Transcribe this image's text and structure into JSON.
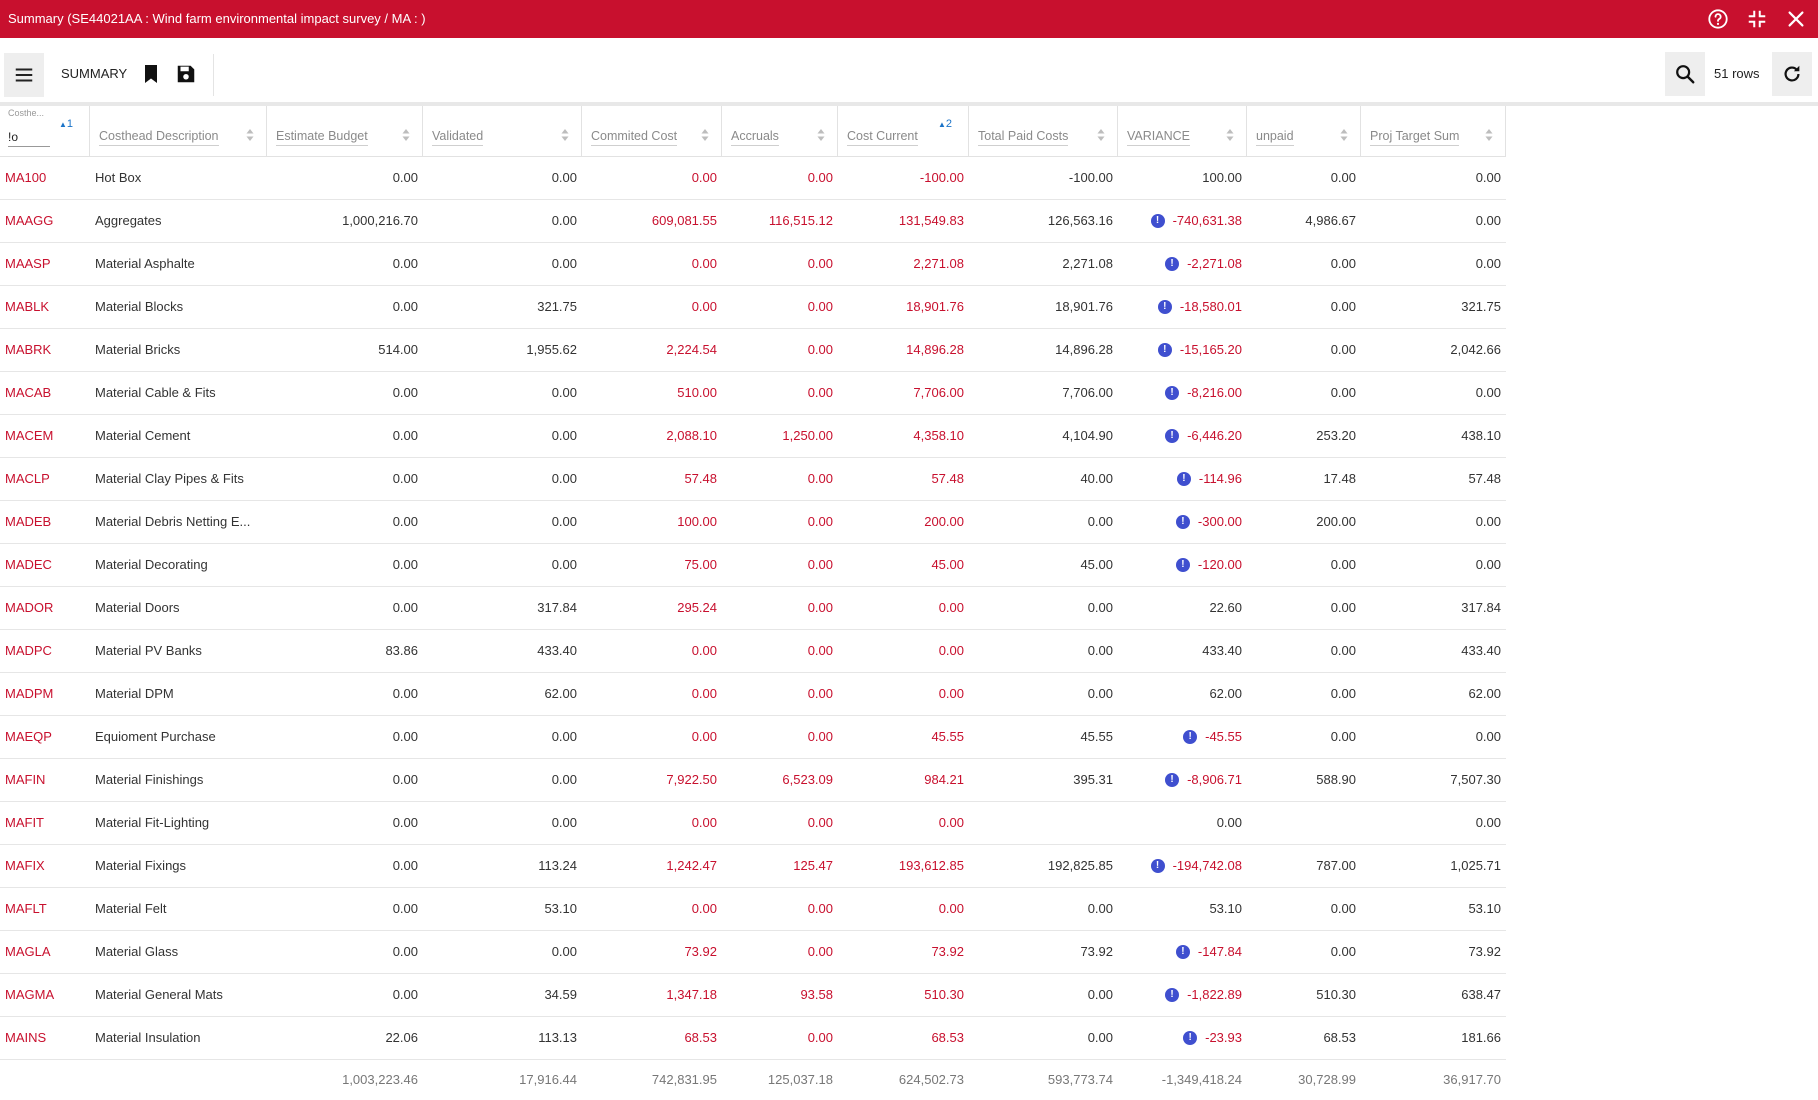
{
  "window": {
    "title": "Summary (SE44021AA : Wind farm environmental impact survey / MA : )",
    "icons": [
      "help-icon",
      "collapse-icon",
      "close-icon"
    ]
  },
  "toolbar": {
    "summary_label": "SUMMARY",
    "rows_label": "51 rows"
  },
  "grid": {
    "filter": {
      "caption": "Costhe...",
      "value": "!o"
    },
    "columns": [
      {
        "key": "code",
        "label": "",
        "sort_order": "1"
      },
      {
        "key": "desc",
        "label": "Costhead Description",
        "sort_order": ""
      },
      {
        "key": "estimate",
        "label": "Estimate Budget",
        "sort_order": ""
      },
      {
        "key": "validated",
        "label": "Validated",
        "sort_order": ""
      },
      {
        "key": "committed",
        "label": "Commited Cost",
        "sort_order": ""
      },
      {
        "key": "accruals",
        "label": "Accruals",
        "sort_order": ""
      },
      {
        "key": "cost_current",
        "label": "Cost Current",
        "sort_order": "2"
      },
      {
        "key": "total_paid",
        "label": "Total Paid Costs",
        "sort_order": ""
      },
      {
        "key": "variance",
        "label": "VARIANCE",
        "sort_order": ""
      },
      {
        "key": "unpaid",
        "label": "unpaid",
        "sort_order": ""
      },
      {
        "key": "proj_target",
        "label": "Proj Target Sum",
        "sort_order": ""
      }
    ],
    "rows": [
      {
        "code": "MA100",
        "desc": "Hot Box",
        "estimate": "0.00",
        "validated": "0.00",
        "committed": "0.00",
        "accruals": "0.00",
        "cost_current": "-100.00",
        "total_paid": "-100.00",
        "variance": "100.00",
        "warn": false,
        "unpaid": "0.00",
        "proj_target": "0.00"
      },
      {
        "code": "MAAGG",
        "desc": "Aggregates",
        "estimate": "1,000,216.70",
        "validated": "0.00",
        "committed": "609,081.55",
        "accruals": "116,515.12",
        "cost_current": "131,549.83",
        "total_paid": "126,563.16",
        "variance": "-740,631.38",
        "warn": true,
        "unpaid": "4,986.67",
        "proj_target": "0.00"
      },
      {
        "code": "MAASP",
        "desc": "Material Asphalte",
        "estimate": "0.00",
        "validated": "0.00",
        "committed": "0.00",
        "accruals": "0.00",
        "cost_current": "2,271.08",
        "total_paid": "2,271.08",
        "variance": "-2,271.08",
        "warn": true,
        "unpaid": "0.00",
        "proj_target": "0.00"
      },
      {
        "code": "MABLK",
        "desc": "Material Blocks",
        "estimate": "0.00",
        "validated": "321.75",
        "committed": "0.00",
        "accruals": "0.00",
        "cost_current": "18,901.76",
        "total_paid": "18,901.76",
        "variance": "-18,580.01",
        "warn": true,
        "unpaid": "0.00",
        "proj_target": "321.75"
      },
      {
        "code": "MABRK",
        "desc": "Material Bricks",
        "estimate": "514.00",
        "validated": "1,955.62",
        "committed": "2,224.54",
        "accruals": "0.00",
        "cost_current": "14,896.28",
        "total_paid": "14,896.28",
        "variance": "-15,165.20",
        "warn": true,
        "unpaid": "0.00",
        "proj_target": "2,042.66"
      },
      {
        "code": "MACAB",
        "desc": "Material Cable & Fits",
        "estimate": "0.00",
        "validated": "0.00",
        "committed": "510.00",
        "accruals": "0.00",
        "cost_current": "7,706.00",
        "total_paid": "7,706.00",
        "variance": "-8,216.00",
        "warn": true,
        "unpaid": "0.00",
        "proj_target": "0.00"
      },
      {
        "code": "MACEM",
        "desc": "Material Cement",
        "estimate": "0.00",
        "validated": "0.00",
        "committed": "2,088.10",
        "accruals": "1,250.00",
        "cost_current": "4,358.10",
        "total_paid": "4,104.90",
        "variance": "-6,446.20",
        "warn": true,
        "unpaid": "253.20",
        "proj_target": "438.10"
      },
      {
        "code": "MACLP",
        "desc": "Material Clay Pipes & Fits",
        "estimate": "0.00",
        "validated": "0.00",
        "committed": "57.48",
        "accruals": "0.00",
        "cost_current": "57.48",
        "total_paid": "40.00",
        "variance": "-114.96",
        "warn": true,
        "unpaid": "17.48",
        "proj_target": "57.48"
      },
      {
        "code": "MADEB",
        "desc": "Material Debris Netting E...",
        "estimate": "0.00",
        "validated": "0.00",
        "committed": "100.00",
        "accruals": "0.00",
        "cost_current": "200.00",
        "total_paid": "0.00",
        "variance": "-300.00",
        "warn": true,
        "unpaid": "200.00",
        "proj_target": "0.00"
      },
      {
        "code": "MADEC",
        "desc": "Material Decorating",
        "estimate": "0.00",
        "validated": "0.00",
        "committed": "75.00",
        "accruals": "0.00",
        "cost_current": "45.00",
        "total_paid": "45.00",
        "variance": "-120.00",
        "warn": true,
        "unpaid": "0.00",
        "proj_target": "0.00"
      },
      {
        "code": "MADOR",
        "desc": "Material Doors",
        "estimate": "0.00",
        "validated": "317.84",
        "committed": "295.24",
        "accruals": "0.00",
        "cost_current": "0.00",
        "total_paid": "0.00",
        "variance": "22.60",
        "warn": false,
        "unpaid": "0.00",
        "proj_target": "317.84"
      },
      {
        "code": "MADPC",
        "desc": "Material PV Banks",
        "estimate": "83.86",
        "validated": "433.40",
        "committed": "0.00",
        "accruals": "0.00",
        "cost_current": "0.00",
        "total_paid": "0.00",
        "variance": "433.40",
        "warn": false,
        "unpaid": "0.00",
        "proj_target": "433.40"
      },
      {
        "code": "MADPM",
        "desc": "Material DPM",
        "estimate": "0.00",
        "validated": "62.00",
        "committed": "0.00",
        "accruals": "0.00",
        "cost_current": "0.00",
        "total_paid": "0.00",
        "variance": "62.00",
        "warn": false,
        "unpaid": "0.00",
        "proj_target": "62.00"
      },
      {
        "code": "MAEQP",
        "desc": "Equioment Purchase",
        "estimate": "0.00",
        "validated": "0.00",
        "committed": "0.00",
        "accruals": "0.00",
        "cost_current": "45.55",
        "total_paid": "45.55",
        "variance": "-45.55",
        "warn": true,
        "unpaid": "0.00",
        "proj_target": "0.00"
      },
      {
        "code": "MAFIN",
        "desc": "Material Finishings",
        "estimate": "0.00",
        "validated": "0.00",
        "committed": "7,922.50",
        "accruals": "6,523.09",
        "cost_current": "984.21",
        "total_paid": "395.31",
        "variance": "-8,906.71",
        "warn": true,
        "unpaid": "588.90",
        "proj_target": "7,507.30"
      },
      {
        "code": "MAFIT",
        "desc": "Material Fit-Lighting",
        "estimate": "0.00",
        "validated": "0.00",
        "committed": "0.00",
        "accruals": "0.00",
        "cost_current": "0.00",
        "total_paid": "",
        "variance": "0.00",
        "warn": false,
        "unpaid": "",
        "proj_target": "0.00"
      },
      {
        "code": "MAFIX",
        "desc": "Material Fixings",
        "estimate": "0.00",
        "validated": "113.24",
        "committed": "1,242.47",
        "accruals": "125.47",
        "cost_current": "193,612.85",
        "total_paid": "192,825.85",
        "variance": "-194,742.08",
        "warn": true,
        "unpaid": "787.00",
        "proj_target": "1,025.71"
      },
      {
        "code": "MAFLT",
        "desc": "Material Felt",
        "estimate": "0.00",
        "validated": "53.10",
        "committed": "0.00",
        "accruals": "0.00",
        "cost_current": "0.00",
        "total_paid": "0.00",
        "variance": "53.10",
        "warn": false,
        "unpaid": "0.00",
        "proj_target": "53.10"
      },
      {
        "code": "MAGLA",
        "desc": "Material Glass",
        "estimate": "0.00",
        "validated": "0.00",
        "committed": "73.92",
        "accruals": "0.00",
        "cost_current": "73.92",
        "total_paid": "73.92",
        "variance": "-147.84",
        "warn": true,
        "unpaid": "0.00",
        "proj_target": "73.92"
      },
      {
        "code": "MAGMA",
        "desc": "Material General Mats",
        "estimate": "0.00",
        "validated": "34.59",
        "committed": "1,347.18",
        "accruals": "93.58",
        "cost_current": "510.30",
        "total_paid": "0.00",
        "variance": "-1,822.89",
        "warn": true,
        "unpaid": "510.30",
        "proj_target": "638.47"
      },
      {
        "code": "MAINS",
        "desc": "Material Insulation",
        "estimate": "22.06",
        "validated": "113.13",
        "committed": "68.53",
        "accruals": "0.00",
        "cost_current": "68.53",
        "total_paid": "0.00",
        "variance": "-23.93",
        "warn": true,
        "unpaid": "68.53",
        "proj_target": "181.66"
      }
    ],
    "totals": {
      "estimate": "1,003,223.46",
      "validated": "17,916.44",
      "committed": "742,831.95",
      "accruals": "125,037.18",
      "cost_current": "624,502.73",
      "total_paid": "593,773.74",
      "variance": "-1,349,418.24",
      "unpaid": "30,728.99",
      "proj_target": "36,917.70"
    }
  },
  "colors": {
    "accent": "#c8102e",
    "warn_badge": "#3f4fcf"
  }
}
